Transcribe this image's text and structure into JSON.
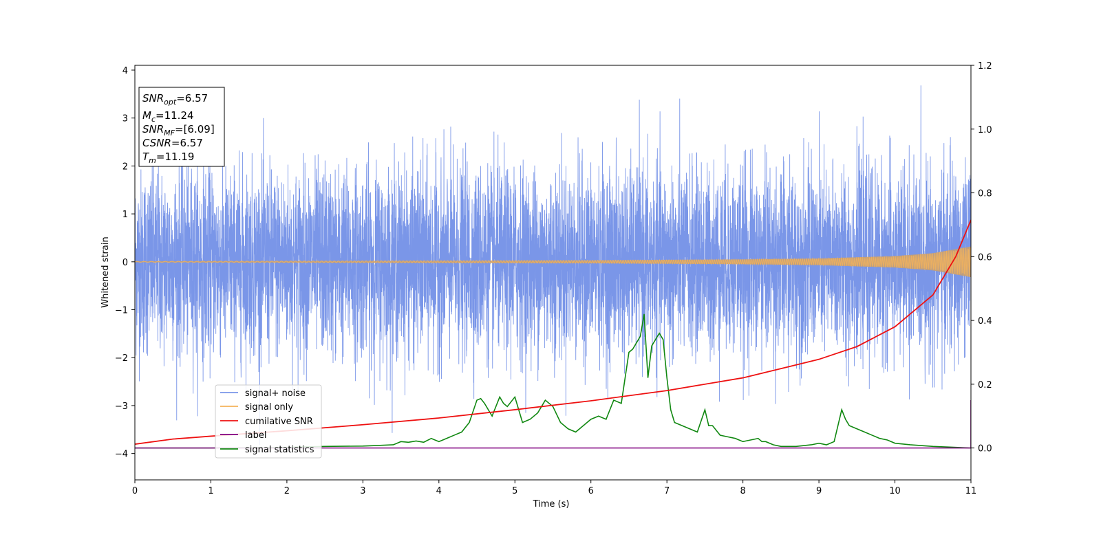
{
  "chart_data": {
    "type": "line",
    "xlabel": "Time (s)",
    "ylabel": "Whitened strain",
    "xlim": [
      0,
      11
    ],
    "ylim_left": [
      -4.55,
      4.1
    ],
    "ylim_right": [
      -0.1,
      1.2
    ],
    "x_ticks": [
      "0",
      "1",
      "2",
      "3",
      "4",
      "5",
      "6",
      "7",
      "8",
      "9",
      "10",
      "11"
    ],
    "y_left_ticks": [
      "4",
      "3",
      "2",
      "1",
      "0",
      "−1",
      "−2",
      "−3",
      "−4"
    ],
    "y_left_tick_values": [
      4,
      3,
      2,
      1,
      0,
      -1,
      -2,
      -3,
      -4
    ],
    "y_right_ticks": [
      "1.2",
      "1.0",
      "0.8",
      "0.6",
      "0.4",
      "0.2",
      "0.0"
    ],
    "y_right_tick_values": [
      1.2,
      1.0,
      0.8,
      0.6,
      0.4,
      0.2,
      0.0
    ],
    "info_box": {
      "snr_opt_sym": "SNR",
      "snr_opt_sub": "opt",
      "snr_opt_val": "=6.57",
      "mc_sym": "M",
      "mc_sub": "c",
      "mc_val": "=11.24",
      "snr_mf_sym": "SNR",
      "snr_mf_sub": "MF",
      "snr_mf_val": "=[6.09]",
      "csnr_sym": "CSNR",
      "csnr_val": "=6.57",
      "tm_sym": "T",
      "tm_sub": "m",
      "tm_val": "=11.19"
    },
    "legend": {
      "position": "lower-left",
      "entries": [
        "signal+ noise",
        "signal only",
        "cumilative SNR",
        "label",
        "signal statistics"
      ]
    },
    "colors": {
      "noise": "#7a96e8",
      "signal": "#f5b35a",
      "snr": "#ee1111",
      "label": "#800080",
      "stats": "#118811",
      "envelope": "#c49f74"
    },
    "series": [
      {
        "name": "signal+ noise",
        "axis": "left",
        "description_values": {
          "typical_amplitude": 1.4,
          "peak_max": 3.68,
          "peak_min": -3.9
        }
      },
      {
        "name": "signal only",
        "axis": "left",
        "envelope_x": [
          0,
          3,
          6,
          8,
          9,
          10,
          10.5,
          11
        ],
        "envelope_amp": [
          0.01,
          0.02,
          0.03,
          0.05,
          0.07,
          0.12,
          0.18,
          0.32
        ]
      },
      {
        "name": "cumilative SNR",
        "axis": "right",
        "x": [
          0,
          0.5,
          1,
          2,
          3,
          4,
          5,
          6,
          7,
          8,
          9,
          9.5,
          10,
          10.5,
          10.8,
          11
        ],
        "y": [
          0.012,
          0.028,
          0.037,
          0.054,
          0.073,
          0.094,
          0.12,
          0.148,
          0.18,
          0.22,
          0.278,
          0.318,
          0.38,
          0.48,
          0.6,
          0.715
        ]
      },
      {
        "name": "label",
        "axis": "right",
        "x": [
          0,
          10.99,
          11.0,
          11.0
        ],
        "y": [
          0.0,
          0.0,
          0.0,
          0.15
        ]
      },
      {
        "name": "signal statistics",
        "axis": "right",
        "x": [
          0,
          1,
          2,
          2.5,
          3,
          3.2,
          3.4,
          3.5,
          3.6,
          3.7,
          3.8,
          3.9,
          4.0,
          4.1,
          4.2,
          4.3,
          4.4,
          4.5,
          4.55,
          4.6,
          4.7,
          4.8,
          4.85,
          4.9,
          5.0,
          5.1,
          5.2,
          5.3,
          5.4,
          5.5,
          5.6,
          5.7,
          5.8,
          5.9,
          6.0,
          6.1,
          6.2,
          6.3,
          6.4,
          6.5,
          6.55,
          6.6,
          6.65,
          6.7,
          6.75,
          6.8,
          6.9,
          6.95,
          7.0,
          7.05,
          7.1,
          7.2,
          7.3,
          7.4,
          7.5,
          7.55,
          7.6,
          7.7,
          7.8,
          7.9,
          8.0,
          8.1,
          8.2,
          8.25,
          8.3,
          8.4,
          8.5,
          8.7,
          8.9,
          9.0,
          9.1,
          9.2,
          9.3,
          9.35,
          9.4,
          9.5,
          9.6,
          9.7,
          9.8,
          9.9,
          10.0,
          10.2,
          10.5,
          11.0
        ],
        "y": [
          0.0,
          0.0,
          0.002,
          0.005,
          0.006,
          0.008,
          0.01,
          0.02,
          0.018,
          0.022,
          0.018,
          0.03,
          0.02,
          0.03,
          0.04,
          0.05,
          0.08,
          0.15,
          0.155,
          0.14,
          0.1,
          0.16,
          0.14,
          0.13,
          0.16,
          0.08,
          0.09,
          0.11,
          0.15,
          0.13,
          0.08,
          0.06,
          0.05,
          0.07,
          0.09,
          0.1,
          0.09,
          0.15,
          0.14,
          0.3,
          0.31,
          0.33,
          0.35,
          0.42,
          0.22,
          0.32,
          0.36,
          0.34,
          0.22,
          0.12,
          0.08,
          0.07,
          0.06,
          0.05,
          0.12,
          0.07,
          0.07,
          0.04,
          0.035,
          0.03,
          0.02,
          0.025,
          0.03,
          0.02,
          0.02,
          0.01,
          0.005,
          0.005,
          0.01,
          0.015,
          0.01,
          0.02,
          0.12,
          0.09,
          0.07,
          0.06,
          0.05,
          0.04,
          0.03,
          0.025,
          0.015,
          0.01,
          0.005,
          0.0
        ]
      }
    ]
  }
}
